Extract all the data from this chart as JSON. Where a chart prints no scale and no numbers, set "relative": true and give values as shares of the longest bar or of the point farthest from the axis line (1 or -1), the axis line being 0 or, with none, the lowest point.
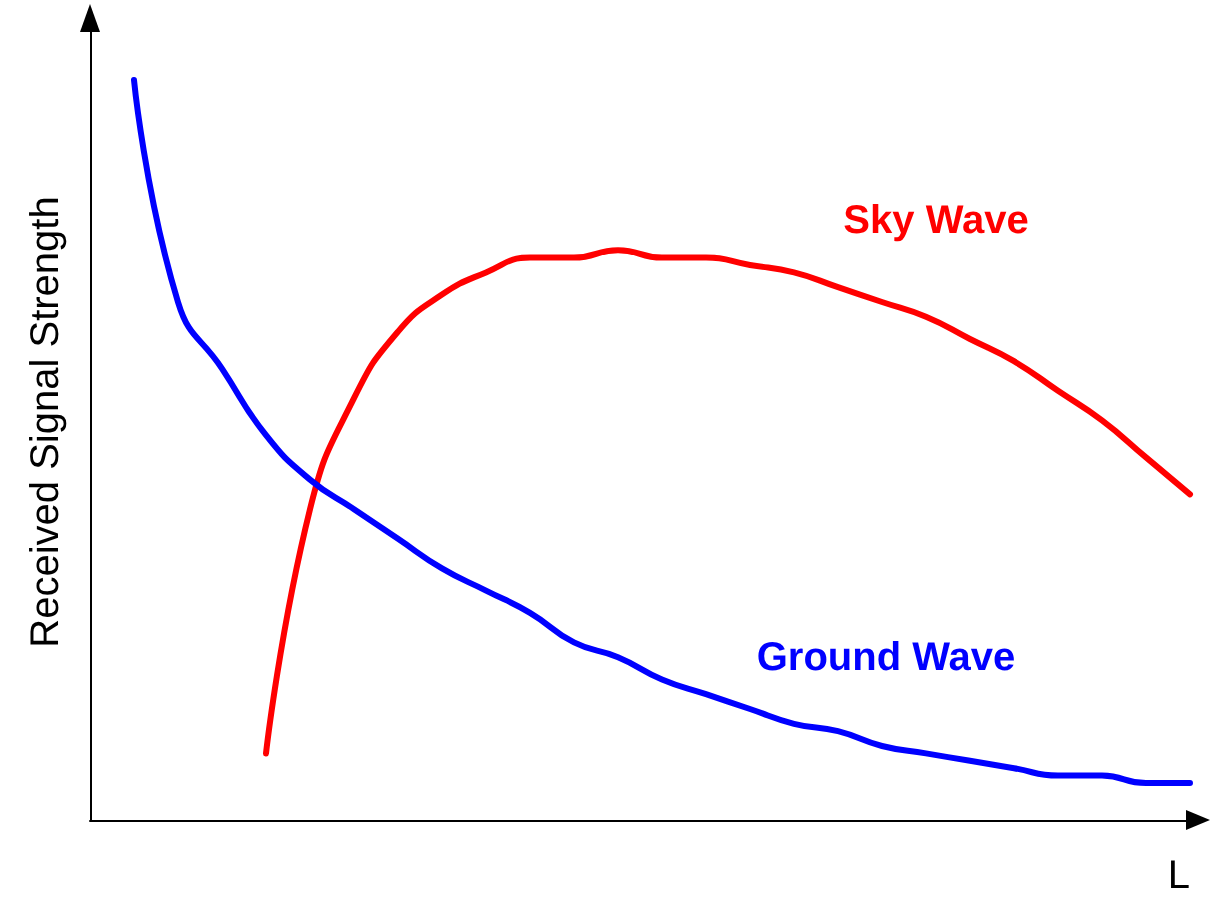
{
  "chart_data": {
    "type": "line",
    "relative": true,
    "xlabel": "L",
    "ylabel": "Received Signal Strength",
    "marker": "none",
    "line_style": "solid",
    "legend": false,
    "grid": false,
    "tick_labels": false,
    "categories": [
      null,
      null,
      null,
      null,
      null,
      null,
      null,
      null,
      null,
      null,
      null,
      null,
      null,
      null,
      null,
      null,
      null,
      null,
      null,
      null,
      null,
      null,
      null,
      null,
      null,
      null
    ],
    "series": [
      {
        "name": "Sky Wave",
        "color": "#ff0000",
        "values": [
          null,
          null,
          null,
          null,
          0.09,
          0.42,
          0.57,
          0.66,
          0.71,
          0.74,
          0.76,
          0.76,
          0.77,
          0.76,
          0.76,
          0.75,
          0.74,
          0.72,
          0.7,
          0.68,
          0.65,
          0.62,
          0.58,
          0.54,
          0.49,
          0.44
        ]
      },
      {
        "name": "Ground Wave",
        "color": "#0000ff",
        "values": [
          null,
          1.0,
          0.7,
          0.61,
          0.52,
          0.46,
          0.42,
          0.38,
          0.34,
          0.31,
          0.28,
          0.24,
          0.22,
          0.19,
          0.17,
          0.15,
          0.13,
          0.12,
          0.1,
          0.09,
          0.08,
          0.07,
          0.06,
          0.06,
          0.05,
          0.05
        ]
      }
    ]
  }
}
